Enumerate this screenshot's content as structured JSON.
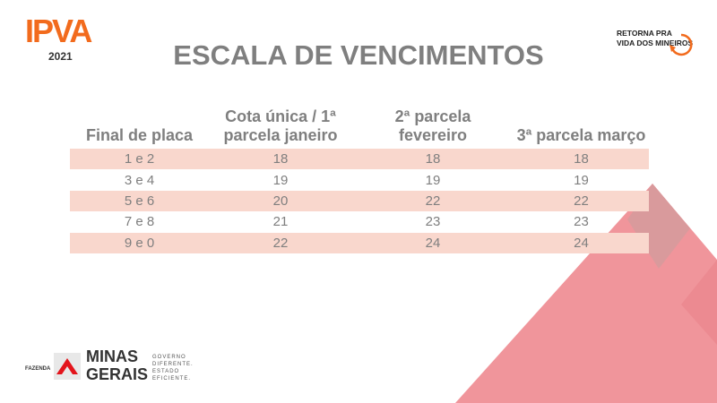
{
  "logo": {
    "ipva": "IPVA",
    "year": "2021"
  },
  "title": "ESCALA DE VENCIMENTOS",
  "campaign": {
    "line1": "RETORNA PRA",
    "line2": "VIDA DOS MINEIROS"
  },
  "table": {
    "headers": [
      "Final de placa",
      "Cota única / 1ª parcela janeiro",
      "2ª parcela fevereiro",
      "3ª parcela março"
    ],
    "rows": [
      [
        "1 e 2",
        "18",
        "18",
        "18"
      ],
      [
        "3 e 4",
        "19",
        "19",
        "19"
      ],
      [
        "5 e 6",
        "20",
        "22",
        "22"
      ],
      [
        "7 e 8",
        "21",
        "23",
        "23"
      ],
      [
        "9 e 0",
        "22",
        "24",
        "24"
      ]
    ]
  },
  "footer": {
    "fazenda": "FAZENDA",
    "minas": "MINAS",
    "gerais": "GERAIS",
    "tagline": [
      "GOVERNO",
      "DIFERENTE.",
      "ESTADO",
      "EFICIENTE."
    ]
  },
  "colors": {
    "accent": "#f26b1d",
    "row_stripe": "#f9d7cd",
    "shape": "#f0959b",
    "title": "#7f7f7f"
  }
}
